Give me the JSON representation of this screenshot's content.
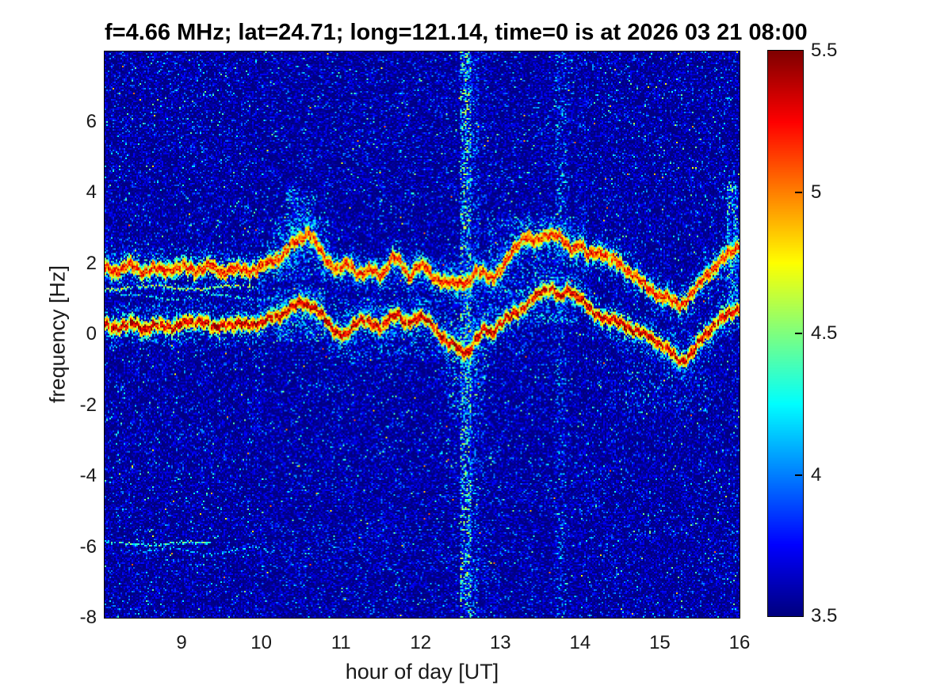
{
  "title": "f=4.66 MHz;  lat=24.71; long=121.14, time=0 is at 2026 03 21 08:00",
  "chart_data": {
    "type": "heatmap",
    "subtype": "doppler-spectrogram",
    "title": "f=4.66 MHz;  lat=24.71; long=121.14, time=0 is at 2026 03 21 08:00",
    "xlabel": "hour of day [UT]",
    "ylabel": "frequency [Hz]",
    "xlim": [
      8.035,
      16
    ],
    "ylim": [
      -8,
      7.98
    ],
    "x_ticks": [
      9,
      10,
      11,
      12,
      13,
      14,
      15,
      16
    ],
    "y_ticks": [
      6,
      4,
      2,
      0,
      -2,
      -4,
      -6,
      -8
    ],
    "grid": false,
    "colorbar": {
      "position": "right",
      "min": 3.5,
      "max": 5.5,
      "ticks": [
        5.5,
        5,
        4.5,
        4,
        3.5
      ],
      "colormap": "jet"
    },
    "background_value": 3.5,
    "noise": {
      "base_max": 3.78,
      "speckle_prob": 0.1,
      "cyan_prob": 0.012,
      "bright_prob": 0.0012
    },
    "traces": [
      {
        "name": "doppler-trace-main",
        "core_value": 5.2,
        "points": [
          [
            8.03,
            0.25
          ],
          [
            8.2,
            0.2
          ],
          [
            8.4,
            0.3
          ],
          [
            8.55,
            0.15
          ],
          [
            8.7,
            0.25
          ],
          [
            8.9,
            0.2
          ],
          [
            9.1,
            0.35
          ],
          [
            9.25,
            0.4
          ],
          [
            9.4,
            0.15
          ],
          [
            9.55,
            0.3
          ],
          [
            9.7,
            0.25
          ],
          [
            9.85,
            0.3
          ],
          [
            10.0,
            0.3
          ],
          [
            10.15,
            0.5
          ],
          [
            10.3,
            0.6
          ],
          [
            10.45,
            0.85
          ],
          [
            10.55,
            0.9
          ],
          [
            10.65,
            0.75
          ],
          [
            10.8,
            0.45
          ],
          [
            10.95,
            0.05
          ],
          [
            11.05,
            -0.1
          ],
          [
            11.15,
            0.25
          ],
          [
            11.25,
            0.45
          ],
          [
            11.35,
            0.3
          ],
          [
            11.5,
            0.15
          ],
          [
            11.6,
            0.5
          ],
          [
            11.7,
            0.55
          ],
          [
            11.8,
            0.3
          ],
          [
            11.9,
            0.4
          ],
          [
            12.0,
            0.5
          ],
          [
            12.1,
            0.35
          ],
          [
            12.2,
            0.1
          ],
          [
            12.35,
            -0.25
          ],
          [
            12.5,
            -0.45
          ],
          [
            12.6,
            -0.5
          ],
          [
            12.7,
            -0.15
          ],
          [
            12.8,
            0.15
          ],
          [
            12.9,
            0.05
          ],
          [
            13.0,
            0.3
          ],
          [
            13.1,
            0.45
          ],
          [
            13.25,
            0.7
          ],
          [
            13.4,
            0.95
          ],
          [
            13.55,
            1.25
          ],
          [
            13.65,
            1.3
          ],
          [
            13.75,
            1.0
          ],
          [
            13.85,
            1.25
          ],
          [
            14.0,
            1.05
          ],
          [
            14.15,
            0.6
          ],
          [
            14.3,
            0.5
          ],
          [
            14.5,
            0.3
          ],
          [
            14.7,
            0.1
          ],
          [
            14.9,
            -0.1
          ],
          [
            15.05,
            -0.35
          ],
          [
            15.2,
            -0.65
          ],
          [
            15.3,
            -0.75
          ],
          [
            15.4,
            -0.55
          ],
          [
            15.55,
            -0.05
          ],
          [
            15.7,
            0.3
          ],
          [
            15.85,
            0.55
          ],
          [
            16.0,
            0.75
          ]
        ]
      },
      {
        "name": "doppler-trace-second-hop",
        "core_value": 5.05,
        "points": [
          [
            8.03,
            1.85
          ],
          [
            8.2,
            1.8
          ],
          [
            8.35,
            1.95
          ],
          [
            8.5,
            1.75
          ],
          [
            8.65,
            1.85
          ],
          [
            8.8,
            1.8
          ],
          [
            9.0,
            1.9
          ],
          [
            9.2,
            1.8
          ],
          [
            9.35,
            1.95
          ],
          [
            9.5,
            1.75
          ],
          [
            9.65,
            1.85
          ],
          [
            9.8,
            1.8
          ],
          [
            9.95,
            1.85
          ],
          [
            10.1,
            2.0
          ],
          [
            10.25,
            2.2
          ],
          [
            10.4,
            2.55
          ],
          [
            10.5,
            2.7
          ],
          [
            10.6,
            2.9
          ],
          [
            10.7,
            2.5
          ],
          [
            10.8,
            2.1
          ],
          [
            10.95,
            1.85
          ],
          [
            11.1,
            2.0
          ],
          [
            11.2,
            1.7
          ],
          [
            11.35,
            1.8
          ],
          [
            11.5,
            1.65
          ],
          [
            11.65,
            2.2
          ],
          [
            11.75,
            2.0
          ],
          [
            11.85,
            1.6
          ],
          [
            11.95,
            1.95
          ],
          [
            12.05,
            1.9
          ],
          [
            12.15,
            1.6
          ],
          [
            12.3,
            1.5
          ],
          [
            12.45,
            1.4
          ],
          [
            12.6,
            1.5
          ],
          [
            12.7,
            1.75
          ],
          [
            12.8,
            1.7
          ],
          [
            12.9,
            1.6
          ],
          [
            13.0,
            1.8
          ],
          [
            13.1,
            2.1
          ],
          [
            13.2,
            2.5
          ],
          [
            13.3,
            2.75
          ],
          [
            13.45,
            2.6
          ],
          [
            13.6,
            2.85
          ],
          [
            13.7,
            2.8
          ],
          [
            13.8,
            2.6
          ],
          [
            13.9,
            2.4
          ],
          [
            14.0,
            2.55
          ],
          [
            14.1,
            2.2
          ],
          [
            14.25,
            2.35
          ],
          [
            14.4,
            2.1
          ],
          [
            14.55,
            1.9
          ],
          [
            14.7,
            1.6
          ],
          [
            14.85,
            1.3
          ],
          [
            15.0,
            1.1
          ],
          [
            15.15,
            0.95
          ],
          [
            15.25,
            0.8
          ],
          [
            15.4,
            1.1
          ],
          [
            15.55,
            1.6
          ],
          [
            15.7,
            1.9
          ],
          [
            15.85,
            2.25
          ],
          [
            16.0,
            2.5
          ]
        ]
      }
    ],
    "thin_lines": [
      {
        "name": "faint-line-1p3Hz",
        "f": 1.32,
        "h0": 8.035,
        "h1": 9.9,
        "amp": 0.05,
        "value": 4.55,
        "density": 0.85
      },
      {
        "name": "faint-line-1p05Hz",
        "f": 1.05,
        "h0": 8.25,
        "h1": 10.25,
        "amp": 0.07,
        "value": 4.2,
        "density": 0.6
      },
      {
        "name": "ghost-line-minus5p9Hz",
        "f": -5.9,
        "h0": 8.035,
        "h1": 9.35,
        "amp": 0.04,
        "value": 4.35,
        "density": 0.8
      },
      {
        "name": "ghost-line-minus6p1Hz",
        "f": -6.12,
        "h0": 8.4,
        "h1": 10.05,
        "amp": 0.09,
        "value": 4.1,
        "density": 0.55
      },
      {
        "name": "ghost-scatter-minus5p7Hz",
        "f": -5.75,
        "h0": 10.0,
        "h1": 11.6,
        "amp": 0.35,
        "value": 3.95,
        "density": 0.22
      },
      {
        "name": "ghost-arc-minus6p5Hz",
        "f": -6.5,
        "h0": 10.3,
        "h1": 12.9,
        "amp": 0.3,
        "value": 3.85,
        "density": 0.15
      }
    ],
    "vertical_stripes": [
      {
        "h0": 12.5,
        "h1": 12.62,
        "f0": -8,
        "f1": 7.98,
        "density": 0.55,
        "vmax": 4.7
      },
      {
        "h0": 12.62,
        "h1": 12.72,
        "f0": -8,
        "f1": 7.98,
        "density": 0.25,
        "vmax": 4.2
      },
      {
        "h0": 13.7,
        "h1": 13.82,
        "f0": -8,
        "f1": 7.98,
        "density": 0.2,
        "vmax": 4.3
      },
      {
        "h0": 13.95,
        "h1": 14.1,
        "f0": 0.5,
        "f1": 7.98,
        "density": 0.08,
        "vmax": 4.0
      },
      {
        "h0": 9.96,
        "h1": 10.03,
        "f0": -0.5,
        "f1": 2.2,
        "density": 0.2,
        "vmax": 4.1
      },
      {
        "h0": 15.86,
        "h1": 15.98,
        "f0": 0.8,
        "f1": 4.3,
        "density": 0.5,
        "vmax": 4.6
      },
      {
        "h0": 10.32,
        "h1": 10.45,
        "f0": 2.0,
        "f1": 4.1,
        "density": 0.3,
        "vmax": 4.4
      },
      {
        "h0": 10.45,
        "h1": 10.68,
        "f0": 2.3,
        "f1": 3.9,
        "density": 0.3,
        "vmax": 4.4
      },
      {
        "h0": 12.76,
        "h1": 12.83,
        "f0": -8,
        "f1": 7.98,
        "density": 0.07,
        "vmax": 4.0
      },
      {
        "h0": 14.4,
        "h1": 14.46,
        "f0": -8,
        "f1": 7.98,
        "density": 0.05,
        "vmax": 3.95
      },
      {
        "h0": 15.0,
        "h1": 15.06,
        "f0": -8,
        "f1": 7.98,
        "density": 0.05,
        "vmax": 3.95
      }
    ],
    "diffuse_patches": [
      {
        "h0": 10.2,
        "h1": 10.8,
        "f0": -0.2,
        "f1": 1.3,
        "density": 0.35,
        "vmax": 4.5
      },
      {
        "h0": 10.15,
        "h1": 10.85,
        "f0": 1.5,
        "f1": 3.3,
        "density": 0.3,
        "vmax": 4.4
      },
      {
        "h0": 10.85,
        "h1": 12.3,
        "f0": -0.7,
        "f1": 1.0,
        "density": 0.18,
        "vmax": 4.3
      },
      {
        "h0": 11.0,
        "h1": 12.3,
        "f0": 1.2,
        "f1": 2.2,
        "density": 0.12,
        "vmax": 4.1
      },
      {
        "h0": 12.3,
        "h1": 12.8,
        "f0": -2.3,
        "f1": 0.6,
        "density": 0.2,
        "vmax": 4.6
      },
      {
        "h0": 12.3,
        "h1": 12.8,
        "f0": 0.9,
        "f1": 2.0,
        "density": 0.15,
        "vmax": 4.2
      },
      {
        "h0": 12.85,
        "h1": 13.95,
        "f0": 0.3,
        "f1": 3.3,
        "density": 0.22,
        "vmax": 4.4
      },
      {
        "h0": 13.0,
        "h1": 13.7,
        "f0": -0.6,
        "f1": 0.4,
        "density": 0.1,
        "vmax": 4.0
      },
      {
        "h0": 14.55,
        "h1": 15.65,
        "f0": -2.2,
        "f1": 0.2,
        "density": 0.13,
        "vmax": 4.2
      },
      {
        "h0": 15.55,
        "h1": 16.0,
        "f0": 0.9,
        "f1": 2.3,
        "density": 0.15,
        "vmax": 4.2
      },
      {
        "h0": 13.5,
        "h1": 13.9,
        "f0": 3.0,
        "f1": 7.9,
        "density": 0.05,
        "vmax": 4.1
      },
      {
        "h0": 10.3,
        "h1": 10.7,
        "f0": 3.3,
        "f1": 4.2,
        "density": 0.1,
        "vmax": 4.2
      },
      {
        "h0": 10.0,
        "h1": 11.6,
        "f0": -6.6,
        "f1": -5.2,
        "density": 0.05,
        "vmax": 4.0
      }
    ]
  },
  "colors": {
    "figure_background": "#ffffff",
    "axes_color": "#000000",
    "tick_label_color": "#1a1a1a",
    "title_color": "#000000",
    "spectrogram_background": "#00008f"
  }
}
